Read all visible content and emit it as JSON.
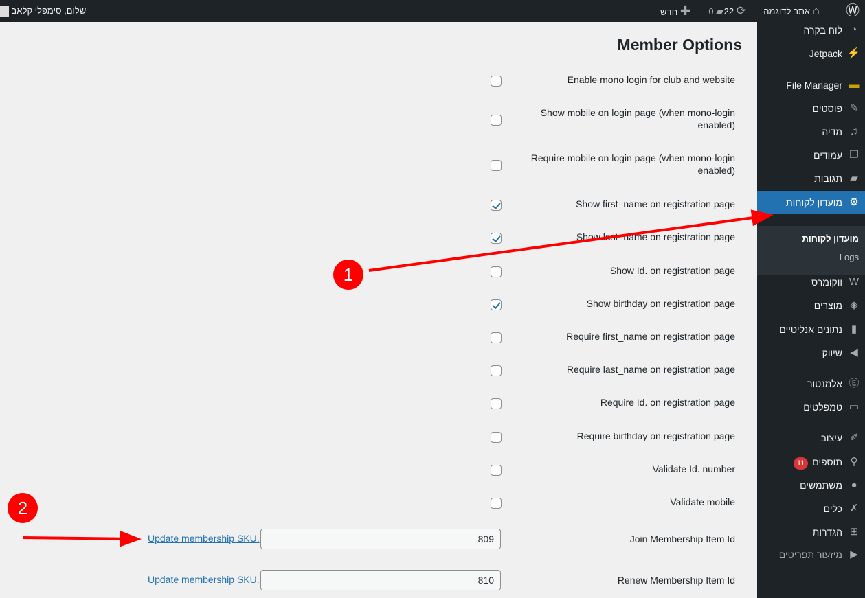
{
  "adminbar": {
    "site": "אתר לדוגמה",
    "updates": "22",
    "comments": "0",
    "new": "חדש",
    "greeting": "שלום, סימפלי קלאב"
  },
  "sidebar": {
    "items": [
      {
        "label": "לוח בקרה",
        "icon": "dashboard-icon",
        "g": "◔"
      },
      {
        "label": "Jetpack",
        "icon": "jetpack-icon",
        "g": "⚡"
      },
      {
        "label": "File Manager",
        "icon": "folder-icon",
        "g": "▬"
      },
      {
        "label": "פוסטים",
        "icon": "pin-icon",
        "g": "✎"
      },
      {
        "label": "מדיה",
        "icon": "media-icon",
        "g": "♫"
      },
      {
        "label": "עמודים",
        "icon": "pages-icon",
        "g": "❐"
      },
      {
        "label": "תגובות",
        "icon": "comments-icon",
        "g": "▰"
      },
      {
        "label": "מועדון לקוחות",
        "icon": "gear-icon",
        "g": "⚙"
      },
      {
        "label": "ווקומרס",
        "icon": "woo-icon",
        "g": "W"
      },
      {
        "label": "מוצרים",
        "icon": "box-icon",
        "g": "◈"
      },
      {
        "label": "נתונים אנליטיים",
        "icon": "chart-icon",
        "g": "▮"
      },
      {
        "label": "שיווק",
        "icon": "megaphone-icon",
        "g": "◀"
      },
      {
        "label": "אלמנטור",
        "icon": "elementor-icon",
        "g": "Ⓔ"
      },
      {
        "label": "טמפלטים",
        "icon": "folder-open-icon",
        "g": "▭"
      },
      {
        "label": "עיצוב",
        "icon": "brush-icon",
        "g": "✐"
      },
      {
        "label": "תוספים",
        "icon": "plugin-icon",
        "g": "⚲",
        "badge": "11"
      },
      {
        "label": "משתמשים",
        "icon": "user-icon",
        "g": "●"
      },
      {
        "label": "כלים",
        "icon": "wrench-icon",
        "g": "✗"
      },
      {
        "label": "הגדרות",
        "icon": "settings-icon",
        "g": "⊞"
      },
      {
        "label": "מיזעור תפריטים",
        "icon": "collapse-icon",
        "g": "▶"
      }
    ],
    "submenu": [
      "מועדון לקוחות",
      "Logs"
    ]
  },
  "main": {
    "title": "Member Options",
    "options": [
      {
        "label": "Enable mono login for club and website",
        "checked": false
      },
      {
        "label": "Show mobile on login page (when mono-login enabled)",
        "checked": false
      },
      {
        "label": "Require mobile on login page (when mono-login enabled)",
        "checked": false
      },
      {
        "label": "Show first_name on registration page",
        "checked": true
      },
      {
        "label": "Show last_name on registration page",
        "checked": true
      },
      {
        "label": "Show Id. on registration page",
        "checked": false
      },
      {
        "label": "Show birthday on registration page",
        "checked": true
      },
      {
        "label": "Require first_name on registration page",
        "checked": false
      },
      {
        "label": "Require last_name on registration page",
        "checked": false
      },
      {
        "label": "Require Id. on registration page",
        "checked": false
      },
      {
        "label": "Require birthday on registration page",
        "checked": false
      },
      {
        "label": "Validate Id. number",
        "checked": false
      },
      {
        "label": "Validate mobile",
        "checked": false
      }
    ],
    "join": {
      "label": "Join Membership Item Id",
      "value": "809",
      "link": "Update membership SKU."
    },
    "renew": {
      "label": "Renew Membership Item Id",
      "value": "810",
      "link": "Update membership SKU."
    }
  },
  "annotations": {
    "one": "1",
    "two": "2",
    "color": "#ff0000"
  }
}
